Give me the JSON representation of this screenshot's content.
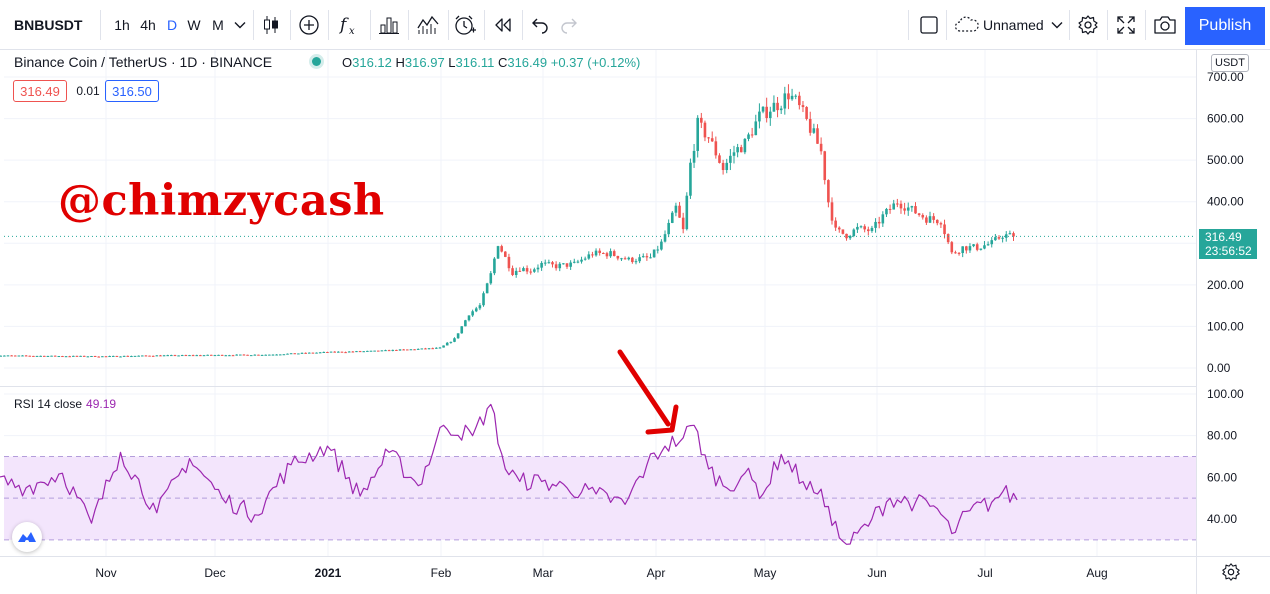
{
  "toolbar": {
    "symbol": "BNBUSDT",
    "intervals": [
      "1h",
      "4h",
      "D",
      "W",
      "M"
    ],
    "active_interval": "D",
    "layout_name": "Unnamed",
    "publish_label": "Publish"
  },
  "legend": {
    "title": "Binance Coin / TetherUS · 1D · BINANCE",
    "open_label": "O",
    "open": "316.12",
    "high_label": "H",
    "high": "316.97",
    "low_label": "L",
    "low": "316.11",
    "close_label": "C",
    "close": "316.49",
    "change": "+0.37 (+0.12%)",
    "bid": "316.49",
    "spread": "0.01",
    "ask": "316.50"
  },
  "watermark": "@chimzycash",
  "price_axis": {
    "currency": "USDT",
    "current_price": "316.49",
    "countdown": "23:56:52"
  },
  "rsi_legend": {
    "label": "RSI 14 close",
    "value": "49.19"
  },
  "colors": {
    "up": "#26a69a",
    "down": "#ef5350",
    "rsi_line": "#9c27b0",
    "rsi_band": "#f3e5fc",
    "accent": "#2962ff",
    "arrow": "#e00000"
  },
  "icons": [
    "chevron-down-icon",
    "candles-icon",
    "add-compare-icon",
    "indicators-icon",
    "bars-templates-icon",
    "chart-templates-icon",
    "alert-icon",
    "replay-icon",
    "undo-icon",
    "redo-icon",
    "fullscreen-box-icon",
    "cloud-icon",
    "settings-icon",
    "expand-icon",
    "camera-icon",
    "tradingview-logo-icon",
    "gear-icon"
  ],
  "chart_data": [
    {
      "type": "candlestick",
      "title": "Binance Coin / TetherUS · 1D · BINANCE",
      "xlabel": "",
      "ylabel": "",
      "x_ticks": [
        "Nov",
        "Dec",
        "2021",
        "Feb",
        "Mar",
        "Apr",
        "May",
        "Jun",
        "Jul",
        "Aug"
      ],
      "y_ticks": [
        "0.00",
        "100.00",
        "200.00",
        "300.00",
        "400.00",
        "500.00",
        "600.00",
        "700.00"
      ],
      "ylim": [
        0,
        700
      ],
      "grid": true,
      "series": [
        {
          "x": [
            "2020-10-01",
            "2020-10-15",
            "2020-11-01",
            "2020-11-15",
            "2020-12-01",
            "2020-12-15",
            "2021-01-01",
            "2021-01-15",
            "2021-02-01",
            "2021-02-05",
            "2021-02-09",
            "2021-02-12",
            "2021-02-15",
            "2021-02-17",
            "2021-02-19",
            "2021-02-21",
            "2021-02-23",
            "2021-02-26",
            "2021-03-01",
            "2021-03-05",
            "2021-03-10",
            "2021-03-15",
            "2021-03-20",
            "2021-03-25",
            "2021-03-31",
            "2021-04-03",
            "2021-04-07",
            "2021-04-09",
            "2021-04-11",
            "2021-04-13",
            "2021-04-16",
            "2021-04-20",
            "2021-04-23",
            "2021-04-26",
            "2021-04-30",
            "2021-05-03",
            "2021-05-06",
            "2021-05-08",
            "2021-05-10",
            "2021-05-12",
            "2021-05-15",
            "2021-05-17",
            "2021-05-19",
            "2021-05-21",
            "2021-05-24",
            "2021-05-27",
            "2021-05-31",
            "2021-06-03",
            "2021-06-07",
            "2021-06-11",
            "2021-06-15",
            "2021-06-19",
            "2021-06-22",
            "2021-06-25",
            "2021-06-29",
            "2021-07-03",
            "2021-07-06",
            "2021-07-09"
          ],
          "close": [
            30,
            29,
            28,
            30,
            31,
            32,
            38,
            41,
            48,
            70,
            130,
            150,
            225,
            300,
            265,
            230,
            240,
            235,
            250,
            245,
            250,
            275,
            275,
            260,
            265,
            300,
            385,
            330,
            490,
            585,
            555,
            480,
            520,
            540,
            605,
            625,
            640,
            660,
            640,
            610,
            560,
            520,
            400,
            330,
            320,
            335,
            330,
            365,
            400,
            380,
            360,
            355,
            275,
            290,
            290,
            300,
            320,
            316.49
          ]
        }
      ]
    },
    {
      "type": "line",
      "title": "RSI 14 close",
      "xlabel": "",
      "ylabel": "",
      "y_ticks": [
        "40.00",
        "60.00",
        "80.00",
        "100.00"
      ],
      "ylim": [
        24,
        103
      ],
      "band": [
        30,
        70
      ],
      "midline": 50,
      "series": [
        {
          "name": "RSI 14 close",
          "x": [
            "2020-10-01",
            "2020-10-10",
            "2020-10-20",
            "2020-10-28",
            "2020-11-05",
            "2020-11-15",
            "2020-11-24",
            "2020-12-03",
            "2020-12-12",
            "2020-12-22",
            "2021-01-01",
            "2021-01-10",
            "2021-01-18",
            "2021-01-26",
            "2021-02-02",
            "2021-02-10",
            "2021-02-15",
            "2021-02-19",
            "2021-02-23",
            "2021-03-01",
            "2021-03-08",
            "2021-03-16",
            "2021-03-24",
            "2021-03-30",
            "2021-04-04",
            "2021-04-09",
            "2021-04-12",
            "2021-04-16",
            "2021-04-21",
            "2021-04-26",
            "2021-05-01",
            "2021-05-06",
            "2021-05-12",
            "2021-05-16",
            "2021-05-19",
            "2021-05-22",
            "2021-05-25",
            "2021-05-31",
            "2021-06-05",
            "2021-06-12",
            "2021-06-18",
            "2021-06-22",
            "2021-06-27",
            "2021-07-03",
            "2021-07-06",
            "2021-07-10"
          ],
          "values": [
            59,
            55,
            62,
            38,
            72,
            43,
            69,
            50,
            42,
            66,
            75,
            51,
            72,
            56,
            85,
            80,
            95,
            64,
            58,
            58,
            55,
            52,
            47,
            66,
            75,
            79,
            85,
            64,
            55,
            62,
            52,
            71,
            58,
            52,
            46,
            31,
            28,
            40,
            50,
            48,
            45,
            33,
            44,
            48,
            53,
            49.19
          ]
        }
      ]
    }
  ]
}
